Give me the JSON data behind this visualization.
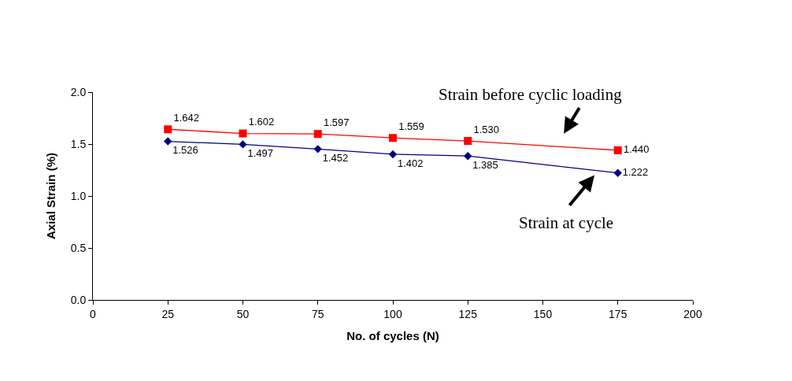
{
  "chart_data": {
    "type": "line",
    "xlabel": "No. of cycles (N)",
    "ylabel": "Axial Strain (%)",
    "x": [
      25,
      50,
      75,
      100,
      125,
      175
    ],
    "series": [
      {
        "name": "Strain before cyclic loading",
        "color": "#ff0000",
        "marker": "square",
        "values": [
          1.642,
          1.602,
          1.597,
          1.559,
          1.53,
          1.44
        ],
        "value_labels": [
          "1.642",
          "1.602",
          "1.597",
          "1.559",
          "1.530",
          "1.440"
        ]
      },
      {
        "name": "Strain at cycle",
        "color": "#000080",
        "marker": "diamond",
        "values": [
          1.526,
          1.497,
          1.452,
          1.402,
          1.385,
          1.222
        ],
        "value_labels": [
          "1.526",
          "1.497",
          "1.452",
          "1.402",
          "1.385",
          "1.222"
        ]
      }
    ],
    "xlim": [
      0,
      200
    ],
    "xticks": [
      0,
      25,
      50,
      75,
      100,
      125,
      150,
      175,
      200
    ],
    "ylim": [
      0,
      2.0
    ],
    "yticks": [
      {
        "value": 0,
        "label": "0.0"
      },
      {
        "value": 0.5,
        "label": "0.5"
      },
      {
        "value": 1.0,
        "label": "1.0"
      },
      {
        "value": 1.5,
        "label": "1.5"
      },
      {
        "value": 2.0,
        "label": "2.0"
      }
    ],
    "legend": false
  }
}
